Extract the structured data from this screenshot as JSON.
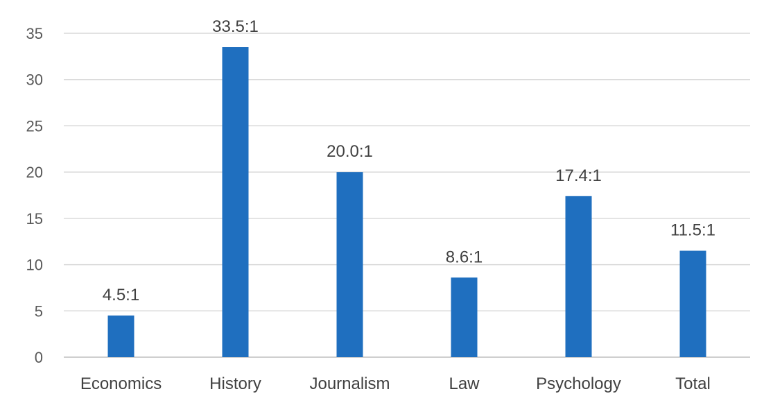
{
  "chart_data": {
    "type": "bar",
    "categories": [
      "Economics",
      "History",
      "Journalism",
      "Law",
      "Psychology",
      "Total"
    ],
    "values": [
      4.5,
      33.5,
      20.0,
      8.6,
      17.4,
      11.5
    ],
    "data_labels": [
      "4.5:1",
      "33.5:1",
      "20.0:1",
      "8.6:1",
      "17.4:1",
      "11.5:1"
    ],
    "yticks": [
      "0",
      "5",
      "10",
      "15",
      "20",
      "25",
      "30",
      "35"
    ],
    "ytick_values": [
      0,
      5,
      10,
      15,
      20,
      25,
      30,
      35
    ],
    "ylim": [
      0,
      35
    ],
    "grid": true,
    "legend": "none",
    "bar_color": "#1f6fbf",
    "title": "",
    "xlabel": "",
    "ylabel": ""
  }
}
